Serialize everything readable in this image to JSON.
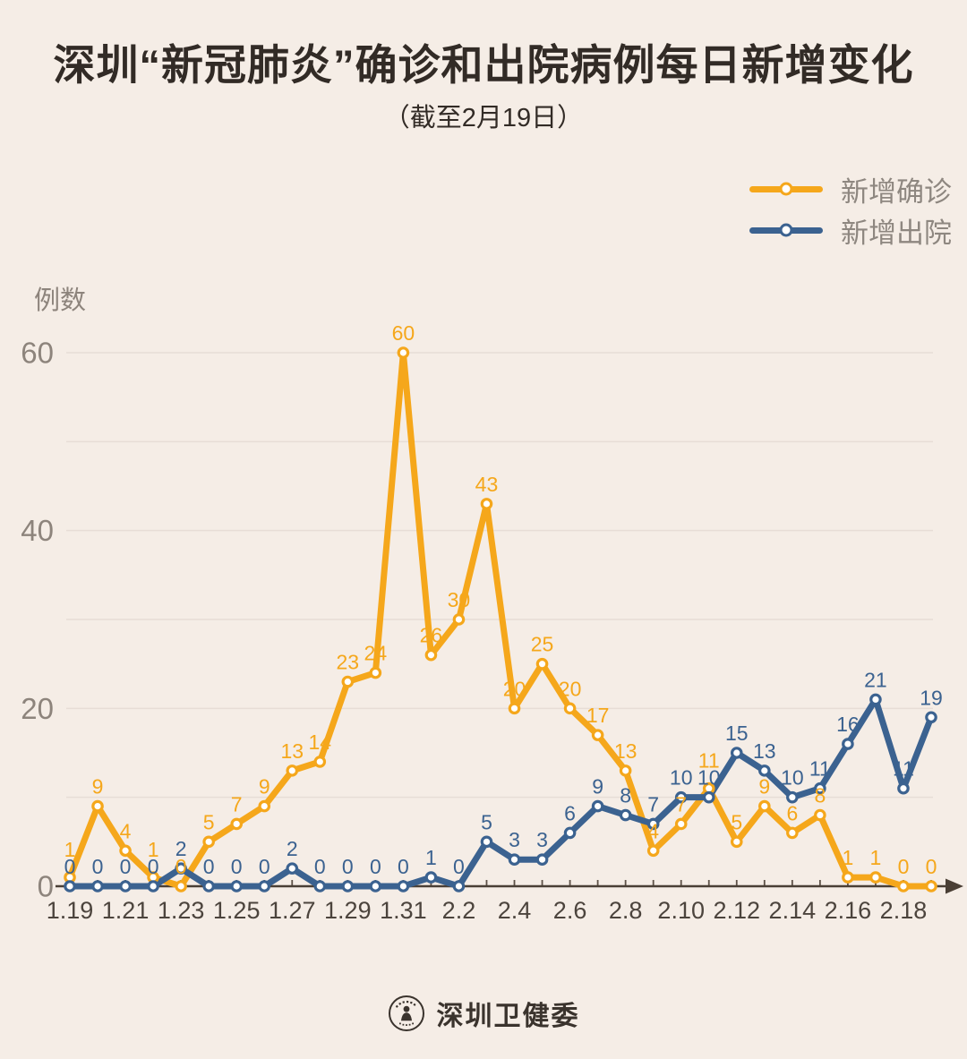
{
  "page": {
    "background": "#F5EDE6"
  },
  "chart_data": {
    "type": "line",
    "title": "深圳“新冠肺炎”确诊和出院病例每日新增变化",
    "subtitle": "（截至2月19日）",
    "ylabel": "例数",
    "yticks": [
      0,
      20,
      40,
      60
    ],
    "ylim": [
      0,
      63
    ],
    "grid": "horizontal, every 10 units",
    "legend_position": "top-right",
    "x_axis_labeled_every": 2,
    "categories": [
      "1.19",
      "1.20",
      "1.21",
      "1.22",
      "1.23",
      "1.24",
      "1.25",
      "1.26",
      "1.27",
      "1.28",
      "1.29",
      "1.30",
      "1.31",
      "2.1",
      "2.2",
      "2.3",
      "2.4",
      "2.5",
      "2.6",
      "2.7",
      "2.8",
      "2.9",
      "2.10",
      "2.11",
      "2.12",
      "2.13",
      "2.14",
      "2.15",
      "2.16",
      "2.17",
      "2.18",
      "2.19"
    ],
    "series": [
      {
        "name": "新增确诊",
        "color": "#F5A71B",
        "values": [
          1,
          9,
          4,
          1,
          0,
          5,
          7,
          9,
          13,
          14,
          23,
          24,
          60,
          26,
          30,
          43,
          20,
          25,
          20,
          17,
          13,
          4,
          7,
          11,
          5,
          9,
          6,
          8,
          1,
          1,
          0,
          0
        ]
      },
      {
        "name": "新增出院",
        "color": "#3B6290",
        "values": [
          0,
          0,
          0,
          0,
          2,
          0,
          0,
          0,
          2,
          0,
          0,
          0,
          0,
          1,
          0,
          5,
          3,
          3,
          6,
          9,
          8,
          7,
          10,
          10,
          15,
          13,
          10,
          11,
          16,
          21,
          11,
          19
        ]
      }
    ]
  },
  "footer": {
    "source_label": "深圳卫健委",
    "logo": "shenzhen-health-commission-emblem"
  }
}
